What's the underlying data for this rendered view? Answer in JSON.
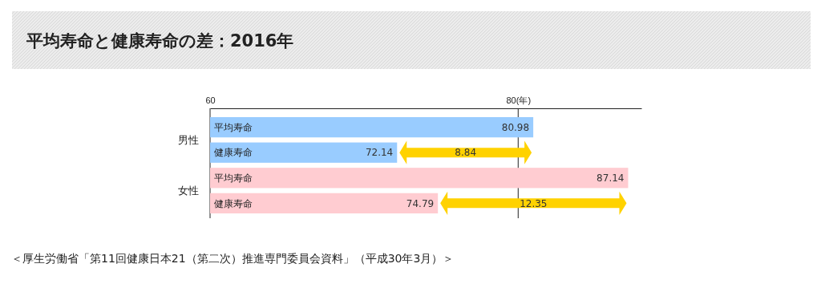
{
  "chart_data": {
    "type": "bar",
    "orientation": "horizontal",
    "title": "平均寿命と健康寿命の差：2016年",
    "categories": [
      "平均寿命",
      "健康寿命",
      "平均寿命",
      "健康寿命"
    ],
    "values": [
      80.98,
      72.14,
      87.14,
      74.79
    ],
    "colors": [
      "#99ccff",
      "#99ccff",
      "#ffccd1",
      "#ffccd1"
    ],
    "data_labels": true,
    "xlim": [
      60,
      88
    ],
    "xticks": [
      60,
      {
        "value": 80,
        "label": "80(年)"
      }
    ],
    "grid": "x",
    "annotations": [
      "男性",
      "女性",
      "8.84",
      "12.35",
      "＜厚生労働省「第11回健康日本21（第二次）推進専門委員会資料」（平成30年3月）＞"
    ]
  }
}
